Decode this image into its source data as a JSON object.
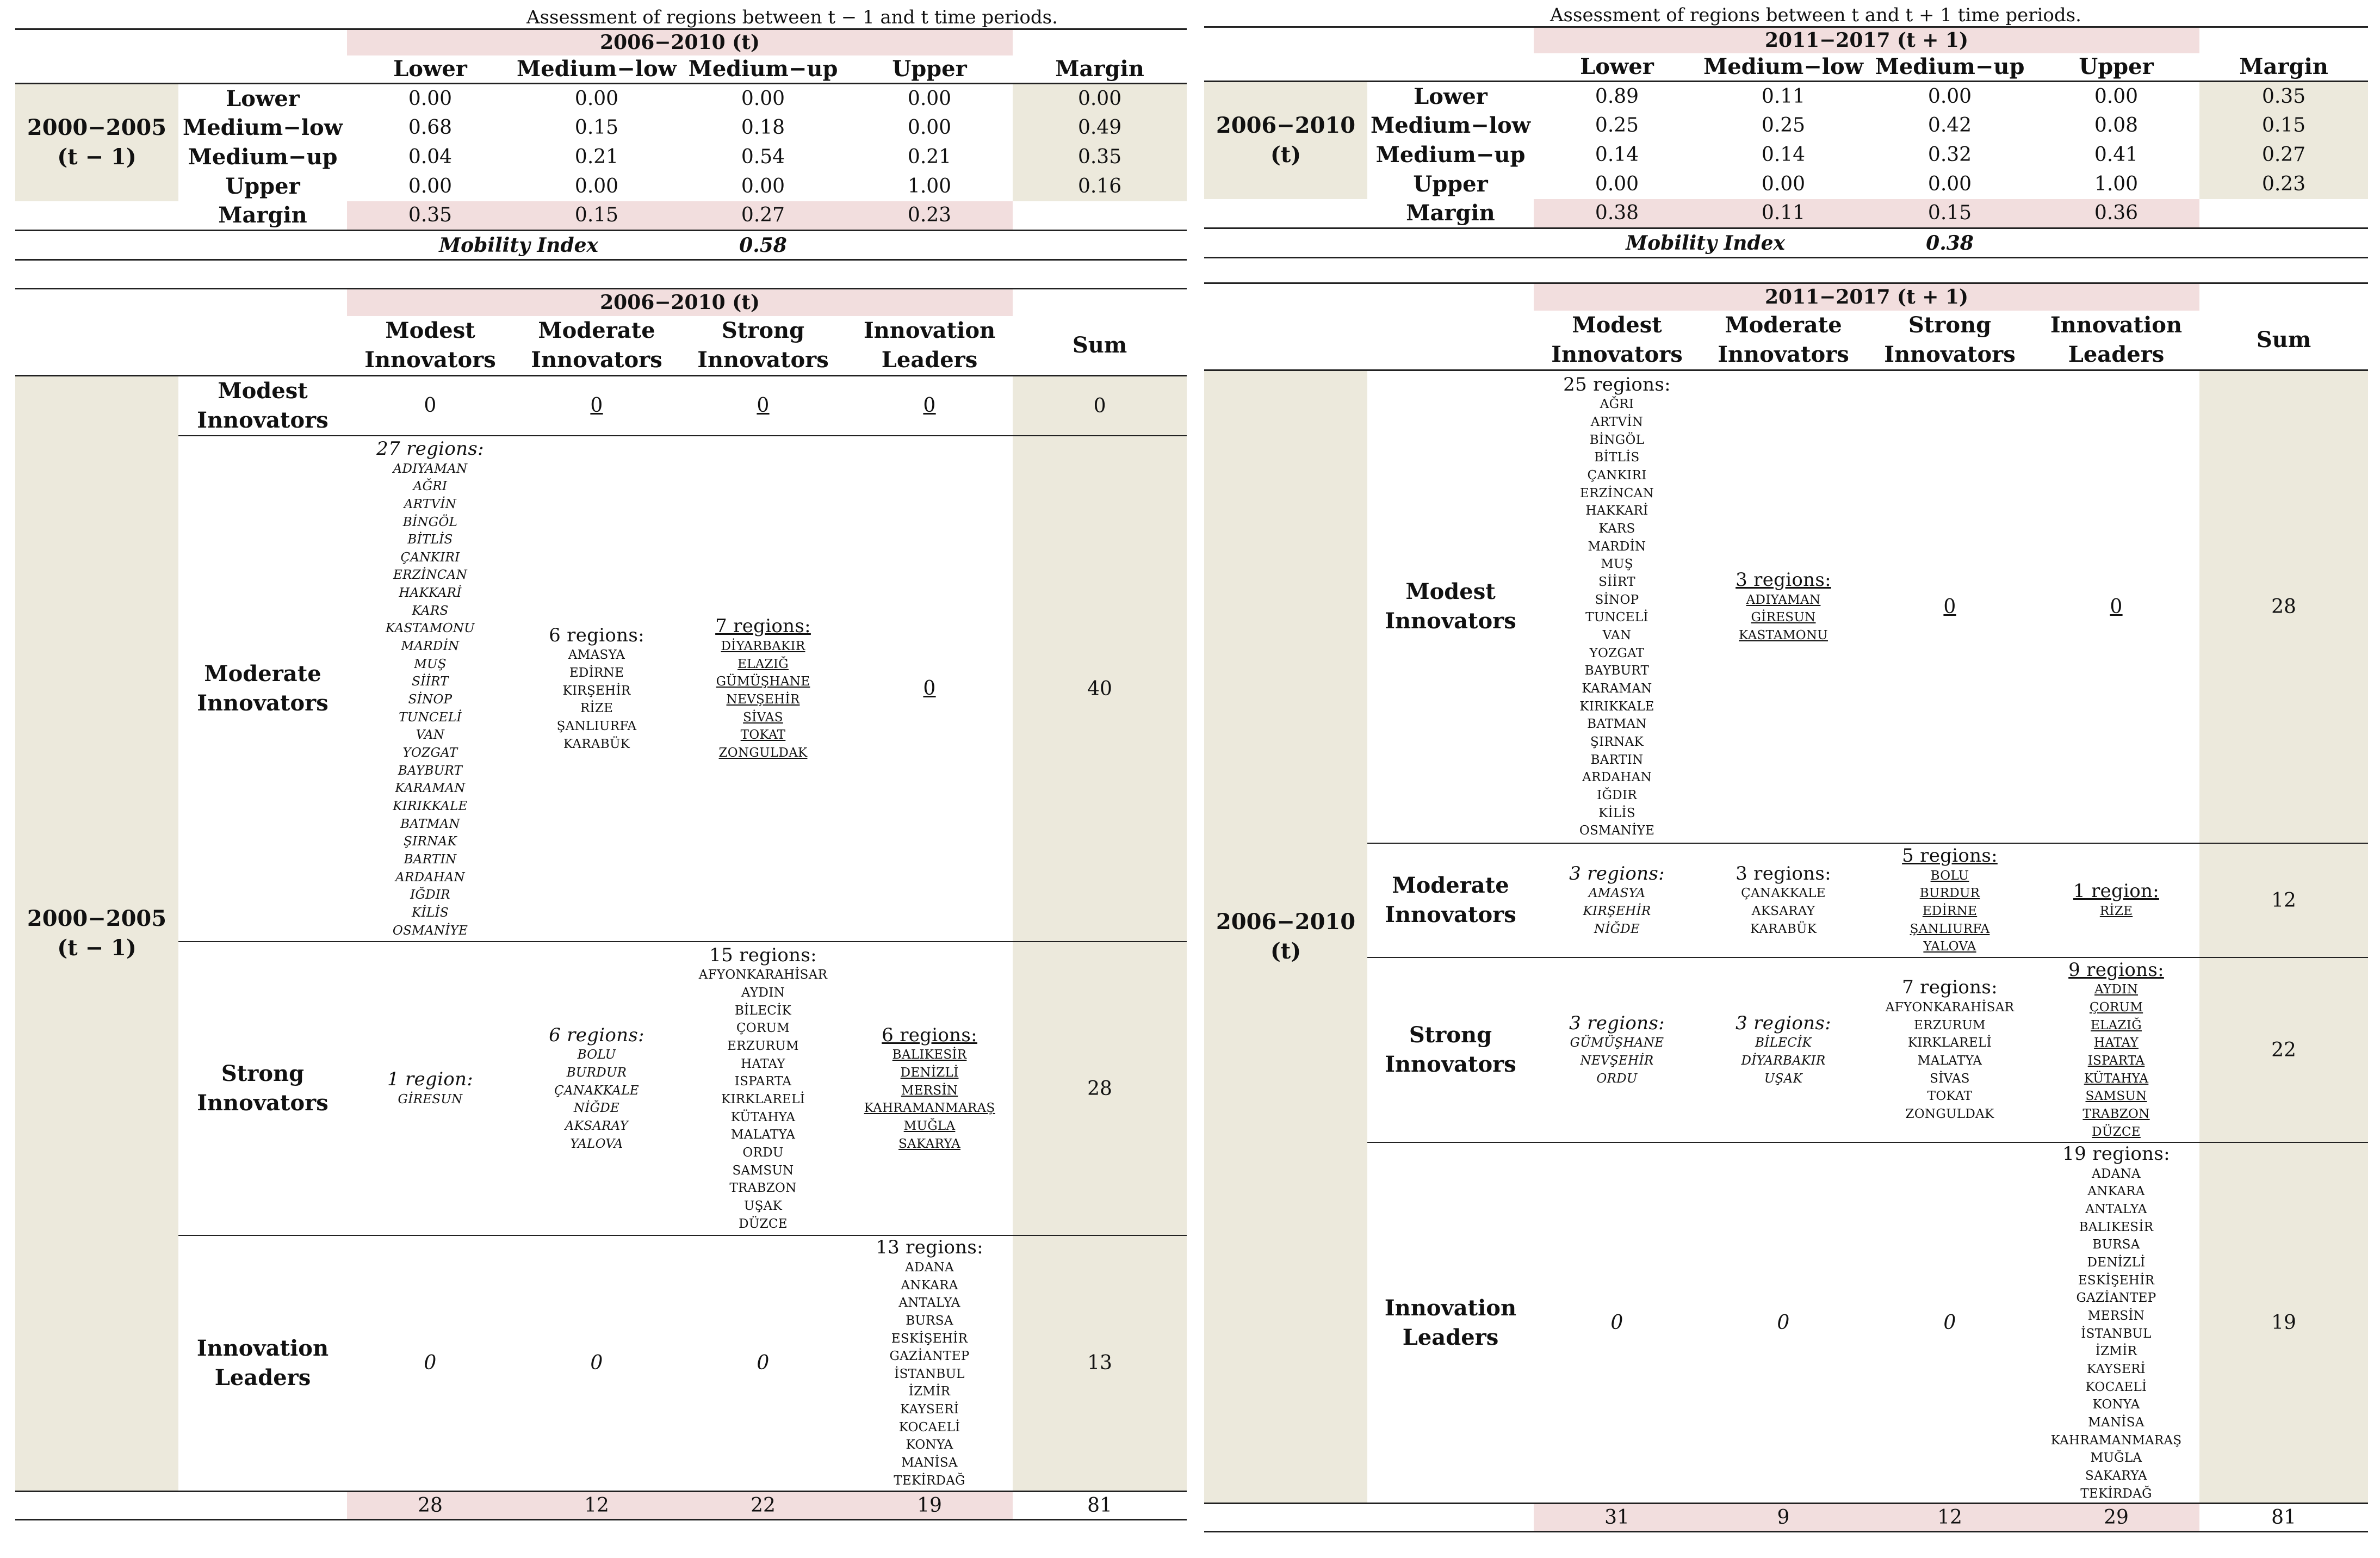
{
  "left": {
    "top_title": "Assessment of regions between t − 1 and t time periods.",
    "period_header": "2006−2010 (t)",
    "row_period": [
      "2000−2005",
      "(t − 1)"
    ],
    "columns": [
      "Lower",
      "Medium−low",
      "Medium−up",
      "Upper",
      "Margin"
    ],
    "rows": [
      {
        "label": "Lower",
        "values": [
          "0.00",
          "0.00",
          "0.00",
          "0.00"
        ],
        "margin": "0.00"
      },
      {
        "label": "Medium−low",
        "values": [
          "0.68",
          "0.15",
          "0.18",
          "0.00"
        ],
        "margin": "0.49"
      },
      {
        "label": "Medium−up",
        "values": [
          "0.04",
          "0.21",
          "0.54",
          "0.21"
        ],
        "margin": "0.35"
      },
      {
        "label": "Upper",
        "values": [
          "0.00",
          "0.00",
          "0.00",
          "1.00"
        ],
        "margin": "0.16"
      }
    ],
    "margin_row": {
      "label": "Margin",
      "values": [
        "0.35",
        "0.15",
        "0.27",
        "0.23"
      ]
    },
    "mobility": {
      "label": "Mobility Index",
      "value": "0.58"
    },
    "class_header": "2006−2010 (t)",
    "class_columns": [
      [
        "Modest",
        "Innovators"
      ],
      [
        "Moderate",
        "Innovators"
      ],
      [
        "Strong",
        "Innovators"
      ],
      [
        "Innovation",
        "Leaders"
      ]
    ],
    "sum_label": "Sum",
    "class_rows": [
      {
        "label": [
          "Modest",
          "Innovators"
        ],
        "cells": [
          {
            "head": "0",
            "items": [],
            "style": ""
          },
          {
            "head": "0",
            "items": [],
            "style": "ul"
          },
          {
            "head": "0",
            "items": [],
            "style": "ul"
          },
          {
            "head": "0",
            "items": [],
            "style": "ul"
          }
        ],
        "sum": "0"
      },
      {
        "label": [
          "Moderate",
          "Innovators"
        ],
        "cells": [
          {
            "head": "27 regions:",
            "items": [
              "ADIYAMAN",
              "AĞRI",
              "ARTVİN",
              "BİNGÖL",
              "BİTLİS",
              "ÇANKIRI",
              "ERZİNCAN",
              "HAKKARİ",
              "KARS",
              "KASTAMONU",
              "MARDİN",
              "MUŞ",
              "SİİRT",
              "SİNOP",
              "TUNCELİ",
              "VAN",
              "YOZGAT",
              "BAYBURT",
              "KARAMAN",
              "KIRIKKALE",
              "BATMAN",
              "ŞIRNAK",
              "BARTIN",
              "ARDAHAN",
              "IĞDIR",
              "KİLİS",
              "OSMANİYE"
            ],
            "style": "it"
          },
          {
            "head": "6 regions:",
            "items": [
              "AMASYA",
              "EDİRNE",
              "KIRŞEHİR",
              "RİZE",
              "ŞANLIURFA",
              "KARABÜK"
            ],
            "style": ""
          },
          {
            "head": "7 regions:",
            "items": [
              "DİYARBAKIR",
              "ELAZIĞ",
              "GÜMÜŞHANE",
              "NEVŞEHİR",
              "SİVAS",
              "TOKAT",
              "ZONGULDAK"
            ],
            "style": "ul"
          },
          {
            "head": "0",
            "items": [],
            "style": "ul"
          }
        ],
        "sum": "40"
      },
      {
        "label": [
          "Strong",
          "Innovators"
        ],
        "cells": [
          {
            "head": "1 region:",
            "items": [
              "GİRESUN"
            ],
            "style": "it"
          },
          {
            "head": "6 regions:",
            "items": [
              "BOLU",
              "BURDUR",
              "ÇANAKKALE",
              "NİĞDE",
              "AKSARAY",
              "YALOVA"
            ],
            "style": "it"
          },
          {
            "head": "15 regions:",
            "items": [
              "AFYONKARAHİSAR",
              "AYDIN",
              "BİLECİK",
              "ÇORUM",
              "ERZURUM",
              "HATAY",
              "ISPARTA",
              "KIRKLARELİ",
              "KÜTAHYA",
              "MALATYA",
              "ORDU",
              "SAMSUN",
              "TRABZON",
              "UŞAK",
              "DÜZCE"
            ],
            "style": ""
          },
          {
            "head": "6 regions:",
            "items": [
              "BALIKESİR",
              "DENİZLİ",
              "MERSİN",
              "KAHRAMANMARAŞ",
              "MUĞLA",
              "SAKARYA"
            ],
            "style": "ul"
          }
        ],
        "sum": "28"
      },
      {
        "label": [
          "Innovation",
          "Leaders"
        ],
        "cells": [
          {
            "head": "0",
            "items": [],
            "style": "it"
          },
          {
            "head": "0",
            "items": [],
            "style": "it"
          },
          {
            "head": "0",
            "items": [],
            "style": "it"
          },
          {
            "head": "13 regions:",
            "items": [
              "ADANA",
              "ANKARA",
              "ANTALYA",
              "BURSA",
              "ESKİŞEHİR",
              "GAZİANTEP",
              "İSTANBUL",
              "İZMİR",
              "KAYSERİ",
              "KOCAELİ",
              "KONYA",
              "MANİSA",
              "TEKİRDAĞ"
            ],
            "style": ""
          }
        ],
        "sum": "13"
      }
    ],
    "totals": [
      "28",
      "12",
      "22",
      "19",
      "81"
    ]
  },
  "right": {
    "top_title": "Assessment of regions between t and t + 1 time periods.",
    "period_header": "2011−2017 (t + 1)",
    "row_period": [
      "2006−2010",
      "(t)"
    ],
    "columns": [
      "Lower",
      "Medium−low",
      "Medium−up",
      "Upper",
      "Margin"
    ],
    "rows": [
      {
        "label": "Lower",
        "values": [
          "0.89",
          "0.11",
          "0.00",
          "0.00"
        ],
        "margin": "0.35"
      },
      {
        "label": "Medium−low",
        "values": [
          "0.25",
          "0.25",
          "0.42",
          "0.08"
        ],
        "margin": "0.15"
      },
      {
        "label": "Medium−up",
        "values": [
          "0.14",
          "0.14",
          "0.32",
          "0.41"
        ],
        "margin": "0.27"
      },
      {
        "label": "Upper",
        "values": [
          "0.00",
          "0.00",
          "0.00",
          "1.00"
        ],
        "margin": "0.23"
      }
    ],
    "margin_row": {
      "label": "Margin",
      "values": [
        "0.38",
        "0.11",
        "0.15",
        "0.36"
      ]
    },
    "mobility": {
      "label": "Mobility Index",
      "value": "0.38"
    },
    "class_header": "2011−2017 (t + 1)",
    "class_columns": [
      [
        "Modest",
        "Innovators"
      ],
      [
        "Moderate",
        "Innovators"
      ],
      [
        "Strong",
        "Innovators"
      ],
      [
        "Innovation",
        "Leaders"
      ]
    ],
    "sum_label": "Sum",
    "class_rows": [
      {
        "label": [
          "Modest",
          "Innovators"
        ],
        "cells": [
          {
            "head": "25 regions:",
            "items": [
              "AĞRI",
              "ARTVİN",
              "BİNGÖL",
              "BİTLİS",
              "ÇANKIRI",
              "ERZİNCAN",
              "HAKKARİ",
              "KARS",
              "MARDİN",
              "MUŞ",
              "SİİRT",
              "SİNOP",
              "TUNCELİ",
              "VAN",
              "YOZGAT",
              "BAYBURT",
              "KARAMAN",
              "KIRIKKALE",
              "BATMAN",
              "ŞIRNAK",
              "BARTIN",
              "ARDAHAN",
              "IĞDIR",
              "KİLİS",
              "OSMANİYE"
            ],
            "style": ""
          },
          {
            "head": "3 regions:",
            "items": [
              "ADIYAMAN",
              "GİRESUN",
              "KASTAMONU"
            ],
            "style": "ul"
          },
          {
            "head": "0",
            "items": [],
            "style": "ul"
          },
          {
            "head": "0",
            "items": [],
            "style": "ul"
          }
        ],
        "sum": "28"
      },
      {
        "label": [
          "Moderate",
          "Innovators"
        ],
        "cells": [
          {
            "head": "3 regions:",
            "items": [
              "AMASYA",
              "KIRŞEHİR",
              "NİĞDE"
            ],
            "style": "it"
          },
          {
            "head": "3 regions:",
            "items": [
              "ÇANAKKALE",
              "AKSARAY",
              "KARABÜK"
            ],
            "style": ""
          },
          {
            "head": "5 regions:",
            "items": [
              "BOLU",
              "BURDUR",
              "EDİRNE",
              "ŞANLIURFA",
              "YALOVA"
            ],
            "style": "ul"
          },
          {
            "head": "1 region:",
            "items": [
              "RİZE"
            ],
            "style": "ul"
          }
        ],
        "sum": "12"
      },
      {
        "label": [
          "Strong",
          "Innovators"
        ],
        "cells": [
          {
            "head": "3 regions:",
            "items": [
              "GÜMÜŞHANE",
              "NEVŞEHİR",
              "ORDU"
            ],
            "style": "it"
          },
          {
            "head": "3 regions:",
            "items": [
              "BİLECİK",
              "DİYARBAKIR",
              "UŞAK"
            ],
            "style": "it"
          },
          {
            "head": "7 regions:",
            "items": [
              "AFYONKARAHİSAR",
              "ERZURUM",
              "KIRKLARELİ",
              "MALATYA",
              "SİVAS",
              "TOKAT",
              "ZONGULDAK"
            ],
            "style": ""
          },
          {
            "head": "9 regions:",
            "items": [
              "AYDIN",
              "ÇORUM",
              "ELAZIĞ",
              "HATAY",
              "ISPARTA",
              "KÜTAHYA",
              "SAMSUN",
              "TRABZON",
              "DÜZCE"
            ],
            "style": "ul"
          }
        ],
        "sum": "22"
      },
      {
        "label": [
          "Innovation",
          "Leaders"
        ],
        "cells": [
          {
            "head": "0",
            "items": [],
            "style": "it"
          },
          {
            "head": "0",
            "items": [],
            "style": "it"
          },
          {
            "head": "0",
            "items": [],
            "style": "it"
          },
          {
            "head": "19 regions:",
            "items": [
              "ADANA",
              "ANKARA",
              "ANTALYA",
              "BALIKESİR",
              "BURSA",
              "DENİZLİ",
              "ESKİŞEHİR",
              "GAZİANTEP",
              "MERSİN",
              "İSTANBUL",
              "İZMİR",
              "KAYSERİ",
              "KOCAELİ",
              "KONYA",
              "MANİSA",
              "KAHRAMANMARAŞ",
              "MUĞLA",
              "SAKARYA",
              "TEKİRDAĞ"
            ],
            "style": ""
          }
        ],
        "sum": "19"
      }
    ],
    "totals": [
      "31",
      "9",
      "12",
      "29",
      "81"
    ]
  }
}
